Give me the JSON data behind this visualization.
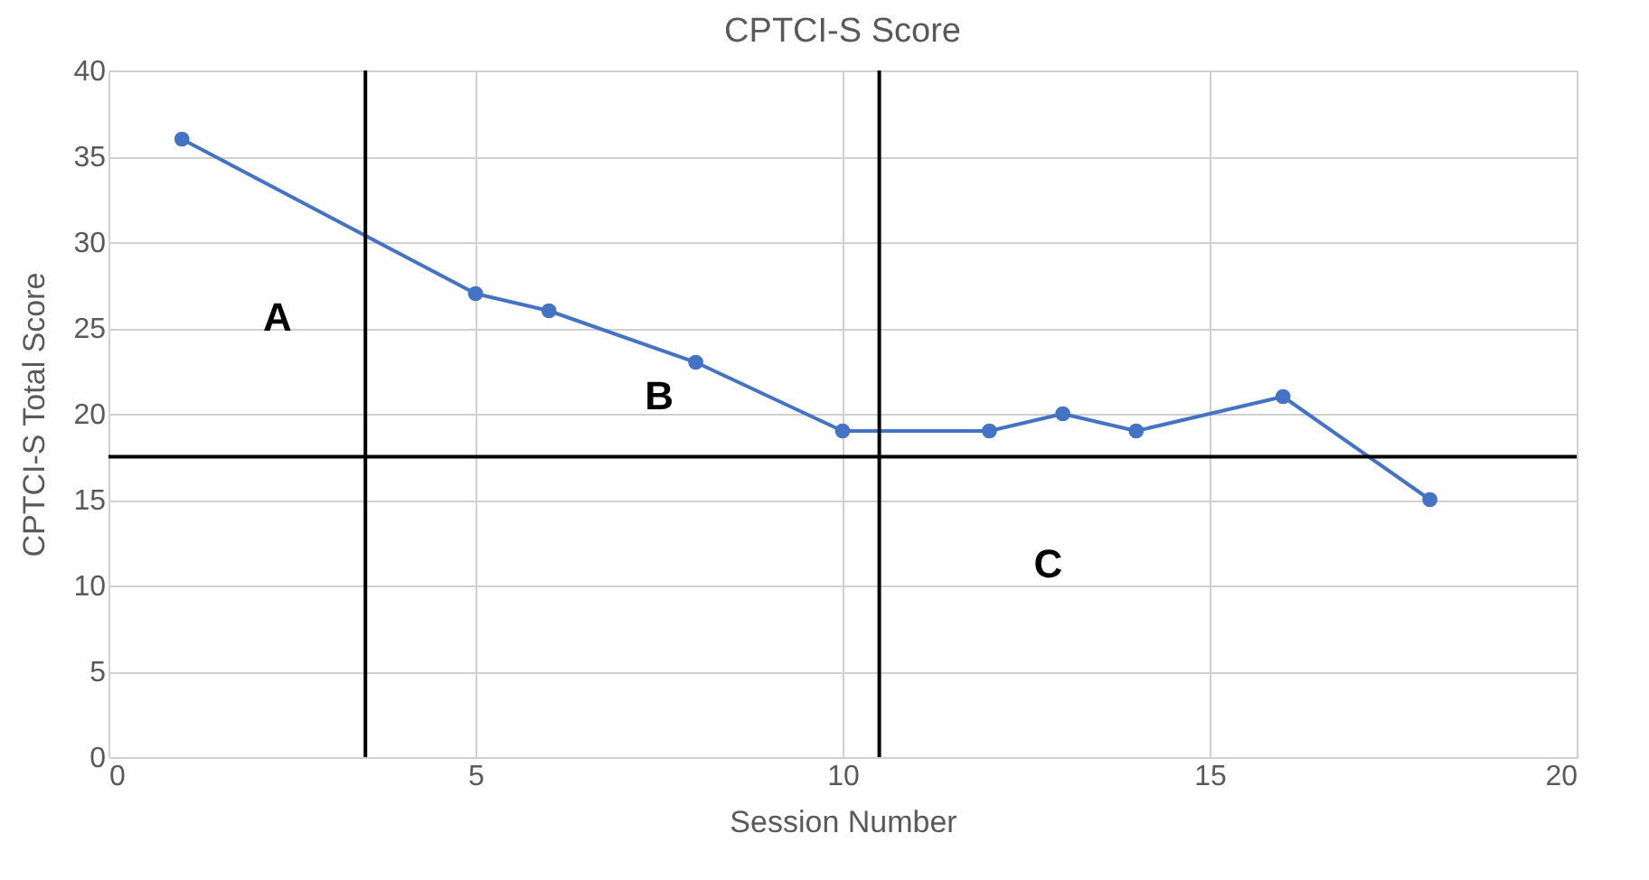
{
  "chart_data": {
    "type": "line",
    "title": "CPTCI-S Score",
    "xlabel": "Session Number",
    "ylabel": "CPTCI-S Total Score",
    "x": [
      1,
      5,
      6,
      8,
      10,
      12,
      13,
      14,
      16,
      18
    ],
    "series": [
      {
        "color": "#4472c4",
        "values": [
          36,
          27,
          26,
          23,
          19,
          19,
          20,
          19,
          21,
          15
        ]
      }
    ],
    "xlim": [
      0,
      20
    ],
    "xticks": [
      0,
      5,
      10,
      15,
      20
    ],
    "ylim": [
      0,
      40
    ],
    "yticks": [
      0,
      5,
      10,
      15,
      20,
      25,
      30,
      35,
      40
    ],
    "grid": true,
    "marker": "circle",
    "line_style": "solid",
    "ref_lines": [
      {
        "axis": "y",
        "value": 17.5,
        "color": "#000000"
      },
      {
        "axis": "x",
        "value": 3.5,
        "color": "#000000"
      },
      {
        "axis": "x",
        "value": 10.5,
        "color": "#000000"
      }
    ],
    "annotations": [
      "A",
      "B",
      "C"
    ]
  }
}
